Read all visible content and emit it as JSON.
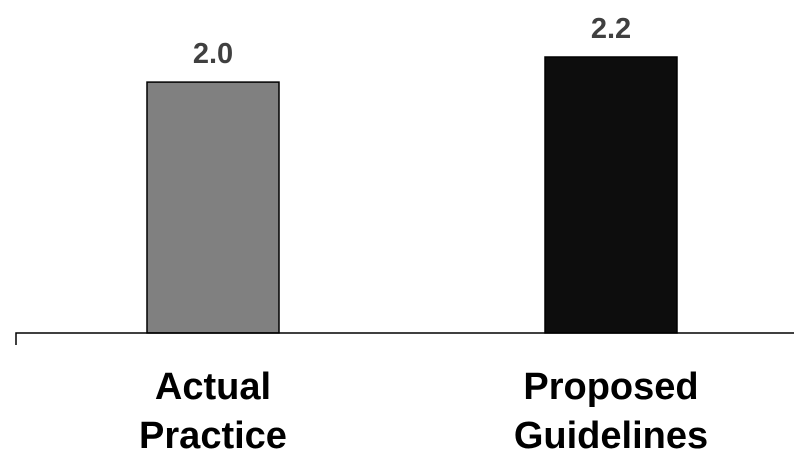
{
  "chart_data": {
    "type": "bar",
    "categories": [
      "Actual Practice",
      "Proposed Guidelines"
    ],
    "category_lines": [
      [
        "Actual",
        "Practice"
      ],
      [
        "Proposed",
        "Guidelines"
      ]
    ],
    "values": [
      2.0,
      2.2
    ],
    "value_labels": [
      "2.0",
      "2.2"
    ],
    "bar_colors": [
      "#808080",
      "#0d0d0d"
    ],
    "ylim": [
      0,
      2.2
    ],
    "title": "",
    "xlabel": "",
    "ylabel": "",
    "grid": false,
    "legend": "none"
  }
}
